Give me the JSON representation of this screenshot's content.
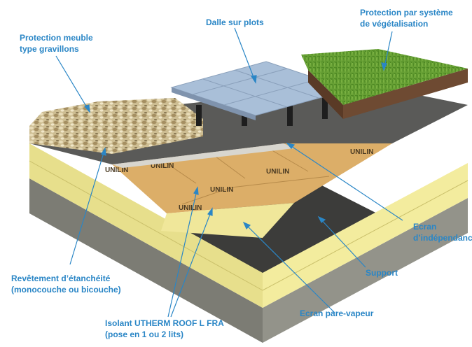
{
  "labels": {
    "protection_meuble": {
      "line1": "Protection meuble",
      "line2": "type gravillons"
    },
    "dalle": {
      "line1": "Dalle sur plots"
    },
    "vegetalisation": {
      "line1": "Protection par système",
      "line2": "de végétalisation"
    },
    "ecran_independance": {
      "line1": "Ecran",
      "line2": "d’indépendance"
    },
    "support": {
      "line1": "Support"
    },
    "revetement": {
      "line1": "Revêtement d’étanchéité",
      "line2": "(monocouche  ou bicouche)"
    },
    "ecran_pare_vapeur": {
      "line1": "Ecran pare-vapeur"
    },
    "isolant": {
      "line1": "Isolant UTHERM ROOF L FRA",
      "line2": "(pose en 1 ou 2 lits)"
    }
  },
  "brand_marks": [
    "UNILIN"
  ],
  "colors": {
    "label": "#2a86c6",
    "concrete": "#8a8a82",
    "insulation_face": "#f3ec9e",
    "board": "#d9ad6a",
    "membrane": "#4a4a48",
    "slab": "#9db4cf",
    "grass": "#5e9a2c",
    "soil": "#6e4a32"
  }
}
